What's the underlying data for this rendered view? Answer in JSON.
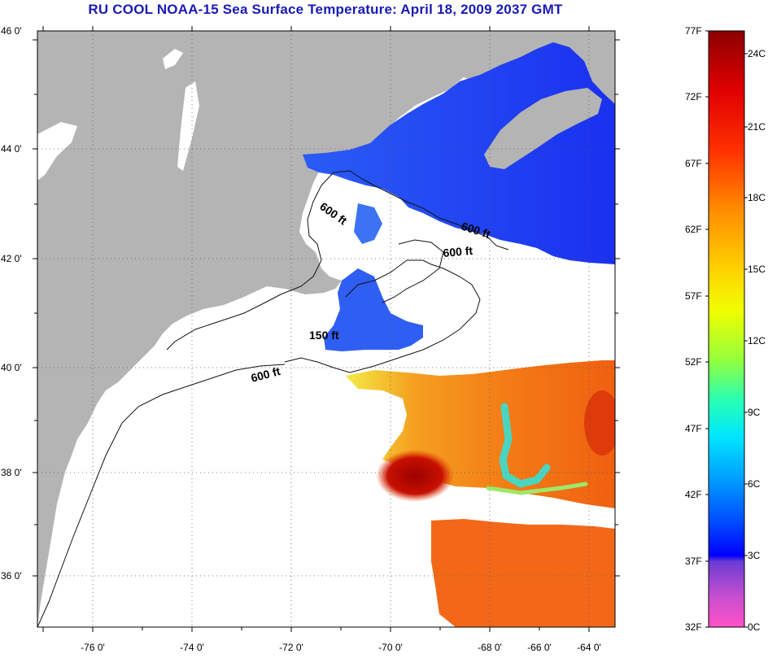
{
  "title": "RU COOL  NOAA-15  Sea Surface Temperature:  April 18, 2009 2037 GMT",
  "colors": {
    "land": "#b4b4b4",
    "no_data": "#ffffff",
    "title": "#1a1ab4"
  },
  "axes": {
    "lat_labels": [
      "46 0'",
      "44 0'",
      "42 0'",
      "40 0'",
      "38 0'",
      "36 0'"
    ],
    "lon_labels": [
      "-76 0'",
      "-74 0'",
      "-72 0'",
      "-70 0'",
      "-68 0'",
      "-66 0'",
      "-64 0'"
    ]
  },
  "contour_labels": [
    "600 ft",
    "600 ft",
    "600 ft",
    "150 ft",
    "600 ft"
  ],
  "colorbar": {
    "fahrenheit": [
      "77F",
      "72F",
      "67F",
      "62F",
      "57F",
      "52F",
      "47F",
      "42F",
      "37F",
      "32F"
    ],
    "celsius": [
      "24C",
      "21C",
      "18C",
      "15C",
      "12C",
      "9C",
      "6C",
      "3C",
      "0C"
    ]
  }
}
